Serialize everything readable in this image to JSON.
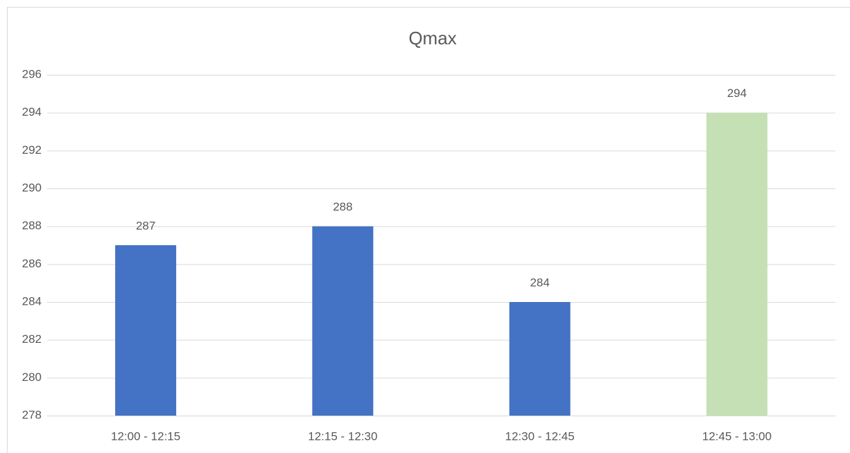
{
  "chart_data": {
    "type": "bar",
    "title": "Qmax",
    "categories": [
      "12:00 - 12:15",
      "12:15 - 12:30",
      "12:30 - 12:45",
      "12:45 - 13:00"
    ],
    "values": [
      287,
      288,
      284,
      294
    ],
    "colors": [
      "#4472c4",
      "#4472c4",
      "#4472c4",
      "#c5e0b4"
    ],
    "ylim": [
      278,
      296
    ],
    "yticks": [
      278,
      280,
      282,
      284,
      286,
      288,
      290,
      292,
      294,
      296
    ],
    "grid": true,
    "data_labels": true
  }
}
